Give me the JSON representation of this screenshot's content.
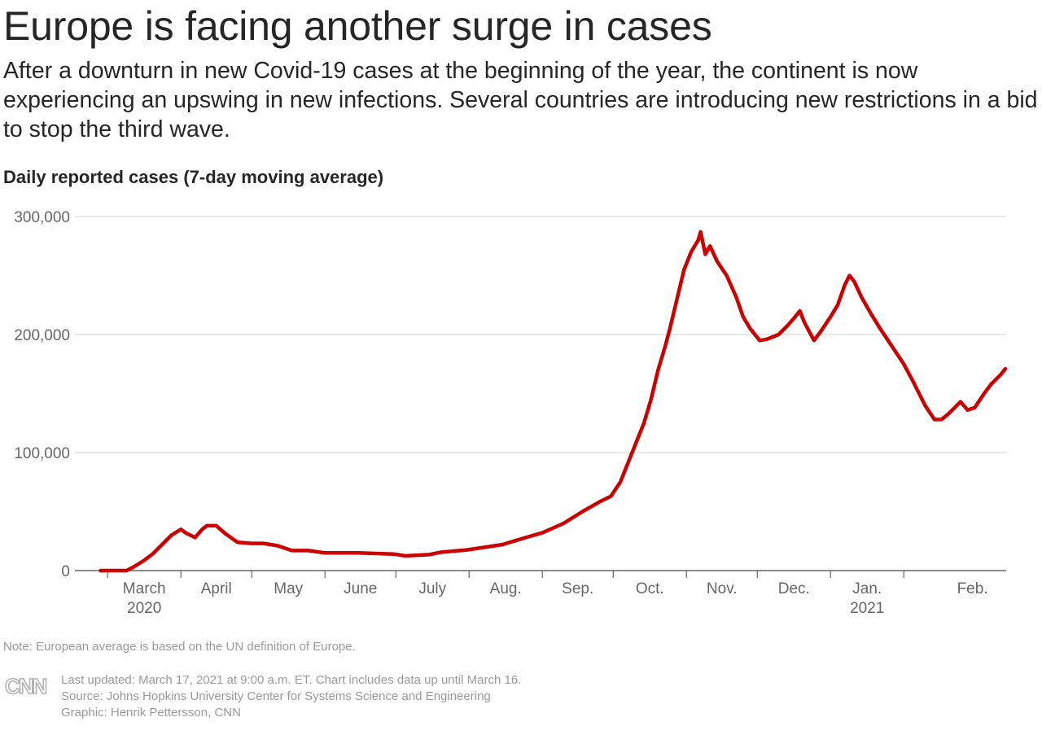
{
  "title": "Europe is facing another surge in cases",
  "subtitle": "After a downturn in new Covid-19 cases at the beginning of the year, the continent is now experiencing an upswing in new infections. Several countries are introducing new restrictions in a bid to stop the third wave.",
  "section_label": "Daily reported cases (7-day moving average)",
  "note": "Note: European average is based on the UN definition of Europe.",
  "footer": {
    "updated": "Last updated: March 17, 2021 at 9:00 a.m. ET. Chart includes data up until March 16.",
    "source": "Source: Johns Hopkins University Center for Systems Science and Engineering",
    "graphic": "Graphic: Henrik Pettersson, CNN"
  },
  "logo": {
    "name": "CNN",
    "icon": "cnn-logo"
  },
  "colors": {
    "line": "#cc0000",
    "grid": "#d9d9d9",
    "axis": "#666666",
    "tick_text": "#666666",
    "muted": "#9a9a9a"
  },
  "chart_data": {
    "type": "line",
    "title": "Daily reported cases (7-day moving average)",
    "xlabel": "",
    "ylabel": "",
    "ylim": [
      0,
      300000
    ],
    "y_ticks": [
      {
        "value": 0,
        "label": "0"
      },
      {
        "value": 100000,
        "label": "100,000"
      },
      {
        "value": 200000,
        "label": "200,000"
      },
      {
        "value": 300000,
        "label": "300,000"
      }
    ],
    "x_ticks": [
      {
        "date": "2020-03-01",
        "label": "March",
        "year": "2020"
      },
      {
        "date": "2020-04-01",
        "label": "April"
      },
      {
        "date": "2020-05-01",
        "label": "May"
      },
      {
        "date": "2020-06-01",
        "label": "June"
      },
      {
        "date": "2020-07-01",
        "label": "July"
      },
      {
        "date": "2020-08-01",
        "label": "Aug."
      },
      {
        "date": "2020-09-01",
        "label": "Sep."
      },
      {
        "date": "2020-10-01",
        "label": "Oct."
      },
      {
        "date": "2020-11-01",
        "label": "Nov."
      },
      {
        "date": "2020-12-01",
        "label": "Dec."
      },
      {
        "date": "2021-01-01",
        "label": "Jan.",
        "year": "2021"
      },
      {
        "date": "2021-02-01",
        "label": "Feb."
      }
    ],
    "xlim": [
      "2020-02-22",
      "2021-03-16"
    ],
    "grid": "horizontal",
    "legend": "none",
    "series": [
      {
        "points": [
          [
            "2020-02-27",
            0
          ],
          [
            "2020-03-05",
            0
          ],
          [
            "2020-03-09",
            0
          ],
          [
            "2020-03-12",
            3000
          ],
          [
            "2020-03-16",
            8000
          ],
          [
            "2020-03-20",
            14000
          ],
          [
            "2020-03-24",
            22000
          ],
          [
            "2020-03-28",
            30000
          ],
          [
            "2020-04-01",
            35000
          ],
          [
            "2020-04-03",
            32000
          ],
          [
            "2020-04-07",
            28000
          ],
          [
            "2020-04-10",
            35000
          ],
          [
            "2020-04-12",
            38000
          ],
          [
            "2020-04-16",
            38000
          ],
          [
            "2020-04-20",
            31000
          ],
          [
            "2020-04-25",
            24000
          ],
          [
            "2020-05-01",
            23000
          ],
          [
            "2020-05-06",
            23000
          ],
          [
            "2020-05-12",
            21000
          ],
          [
            "2020-05-18",
            17000
          ],
          [
            "2020-05-25",
            17000
          ],
          [
            "2020-06-01",
            15000
          ],
          [
            "2020-06-15",
            15000
          ],
          [
            "2020-06-30",
            14000
          ],
          [
            "2020-07-05",
            12500
          ],
          [
            "2020-07-15",
            13500
          ],
          [
            "2020-07-20",
            15500
          ],
          [
            "2020-07-31",
            17500
          ],
          [
            "2020-08-05",
            19000
          ],
          [
            "2020-08-15",
            22000
          ],
          [
            "2020-08-25",
            28000
          ],
          [
            "2020-09-01",
            32000
          ],
          [
            "2020-09-10",
            40000
          ],
          [
            "2020-09-18",
            50000
          ],
          [
            "2020-09-25",
            58000
          ],
          [
            "2020-09-30",
            63000
          ],
          [
            "2020-10-04",
            75000
          ],
          [
            "2020-10-08",
            95000
          ],
          [
            "2020-10-11",
            110000
          ],
          [
            "2020-10-14",
            125000
          ],
          [
            "2020-10-17",
            145000
          ],
          [
            "2020-10-20",
            170000
          ],
          [
            "2020-10-23",
            190000
          ],
          [
            "2020-10-25",
            205000
          ],
          [
            "2020-10-28",
            230000
          ],
          [
            "2020-10-31",
            255000
          ],
          [
            "2020-11-03",
            270000
          ],
          [
            "2020-11-06",
            280000
          ],
          [
            "2020-11-07",
            287000
          ],
          [
            "2020-11-09",
            268000
          ],
          [
            "2020-11-11",
            275000
          ],
          [
            "2020-11-14",
            262000
          ],
          [
            "2020-11-18",
            250000
          ],
          [
            "2020-11-22",
            232000
          ],
          [
            "2020-11-25",
            215000
          ],
          [
            "2020-11-28",
            205000
          ],
          [
            "2020-12-02",
            195000
          ],
          [
            "2020-12-05",
            196000
          ],
          [
            "2020-12-10",
            200000
          ],
          [
            "2020-12-14",
            208000
          ],
          [
            "2020-12-17",
            215000
          ],
          [
            "2020-12-19",
            220000
          ],
          [
            "2020-12-21",
            210000
          ],
          [
            "2020-12-25",
            195000
          ],
          [
            "2020-12-28",
            203000
          ],
          [
            "2021-01-01",
            215000
          ],
          [
            "2021-01-04",
            225000
          ],
          [
            "2021-01-07",
            242000
          ],
          [
            "2021-01-09",
            250000
          ],
          [
            "2021-01-11",
            245000
          ],
          [
            "2021-01-14",
            232000
          ],
          [
            "2021-01-18",
            218000
          ],
          [
            "2021-01-22",
            205000
          ],
          [
            "2021-01-27",
            190000
          ],
          [
            "2021-02-01",
            175000
          ],
          [
            "2021-02-05",
            160000
          ],
          [
            "2021-02-10",
            140000
          ],
          [
            "2021-02-14",
            128000
          ],
          [
            "2021-02-17",
            128000
          ],
          [
            "2021-02-20",
            133000
          ],
          [
            "2021-02-25",
            143000
          ],
          [
            "2021-02-28",
            136000
          ],
          [
            "2021-03-03",
            138000
          ],
          [
            "2021-03-07",
            150000
          ],
          [
            "2021-03-10",
            158000
          ],
          [
            "2021-03-14",
            166000
          ],
          [
            "2021-03-16",
            171000
          ]
        ]
      }
    ]
  }
}
